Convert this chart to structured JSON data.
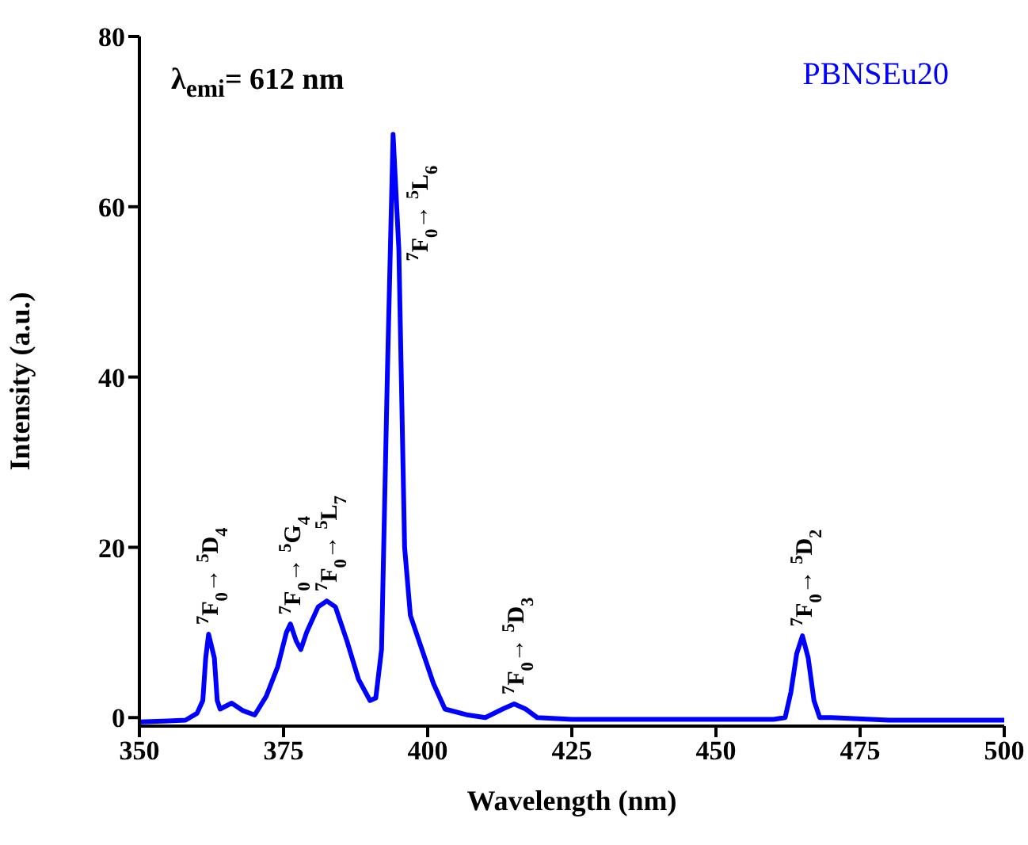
{
  "chart_data": {
    "type": "line",
    "xlabel": "Wavelength (nm)",
    "ylabel": "Intensity (a.u.)",
    "x": [
      350,
      355,
      358,
      360,
      361,
      361.5,
      362,
      363,
      363.5,
      364,
      366,
      368,
      370,
      372,
      374,
      375.5,
      376.2,
      377.2,
      378,
      379,
      381,
      382.5,
      384,
      386,
      388,
      390,
      391,
      392,
      393,
      394,
      395,
      396,
      397,
      399,
      401,
      403,
      407,
      410,
      413,
      415,
      417,
      419,
      425,
      440,
      460,
      462,
      463,
      464,
      465,
      466,
      467,
      468,
      470,
      480,
      500
    ],
    "series": [
      {
        "name": "PBNSEu20",
        "color": "#0000ff",
        "values": [
          -0.5,
          -0.4,
          -0.3,
          0.5,
          2,
          7,
          9.8,
          7,
          2,
          1,
          1.7,
          0.8,
          0.3,
          2.5,
          6,
          10,
          11,
          9,
          8,
          10,
          13,
          13.7,
          13,
          9,
          4.5,
          2,
          2.3,
          8,
          40,
          68.5,
          55,
          20,
          12,
          8,
          4,
          1,
          0.3,
          0,
          1,
          1.6,
          1,
          0,
          -0.2,
          -0.2,
          -0.2,
          0,
          3,
          7.5,
          9.6,
          7,
          2,
          0,
          0,
          -0.3,
          -0.3
        ]
      }
    ],
    "xlim": [
      350,
      500
    ],
    "xticks": [
      350,
      375,
      400,
      425,
      450,
      475,
      500
    ],
    "ylim": [
      -1,
      80
    ],
    "yticks": [
      0,
      20,
      40,
      60,
      80
    ],
    "grid": false,
    "legend": "top right",
    "marker": "none",
    "line_style": "solid",
    "annotations": [
      "λ$_{emi}$= 612 nm",
      {
        "text": "$^{7}$F$_{0}$→ $^{5}$D$_{4}$",
        "x": 362,
        "y": 9.8
      },
      {
        "text": "$^{7}$F$_{0}$→ $^{5}$G$_{4}$",
        "x": 376.2,
        "y": 11
      },
      {
        "text": "$^{7}$F$_{0}$→ $^{5}$L$_{7}$",
        "x": 382.5,
        "y": 13.7
      },
      {
        "text": "$^{7}$F$_{0}$→ $^{5}$L$_{6}$",
        "x": 394,
        "y": 68.5
      },
      {
        "text": "$^{7}$F$_{0}$→ $^{5}$D$_{3}$",
        "x": 415,
        "y": 1.6
      },
      {
        "text": "$^{7}$F$_{0}$→ $^{5}$D$_{2}$",
        "x": 465,
        "y": 9.6
      }
    ]
  }
}
